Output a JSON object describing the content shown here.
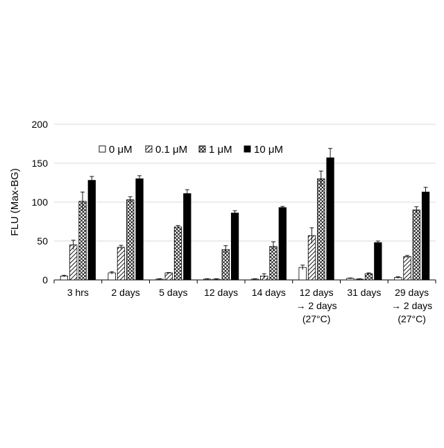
{
  "chart_data": {
    "type": "bar",
    "ylabel": "FLU (Max-BG)",
    "ylim": [
      0,
      200
    ],
    "yticks": [
      0,
      50,
      100,
      150,
      200
    ],
    "grid": true,
    "legend_position": "top-left",
    "categories": [
      [
        "3 hrs"
      ],
      [
        "2 days"
      ],
      [
        "5 days"
      ],
      [
        "12 days"
      ],
      [
        "14 days"
      ],
      [
        "12 days",
        "→ 2 days",
        "(27°C)"
      ],
      [
        "31 days"
      ],
      [
        "29 days",
        "→ 2 days",
        "(27°C)"
      ]
    ],
    "series": [
      {
        "name": "0 μM",
        "pattern": "blank",
        "values": [
          5,
          9,
          1,
          1,
          1,
          16,
          2,
          3
        ],
        "errors": [
          1,
          1.5,
          0.5,
          0.5,
          0.5,
          3,
          0.5,
          1
        ]
      },
      {
        "name": "0.1 μM",
        "pattern": "diagonal",
        "values": [
          45,
          42,
          9,
          1,
          5,
          57,
          1,
          30
        ],
        "errors": [
          6,
          2.5,
          0.5,
          0.5,
          3,
          10,
          0.5,
          1.5
        ]
      },
      {
        "name": "1 μM",
        "pattern": "crosshatch",
        "values": [
          101,
          103,
          68,
          39,
          43,
          130,
          8,
          90
        ],
        "errors": [
          12,
          4,
          2,
          5,
          6,
          10,
          1,
          4
        ]
      },
      {
        "name": "10 μM",
        "pattern": "solid",
        "values": [
          128,
          130,
          111,
          86,
          93,
          157,
          48,
          113
        ],
        "errors": [
          5,
          4,
          5,
          3,
          1.5,
          12,
          2,
          6
        ]
      }
    ],
    "colors": {
      "bar_edge": "#000000",
      "solid": "#000000",
      "grid": "#d9d9d9",
      "axis": "#000000"
    }
  }
}
